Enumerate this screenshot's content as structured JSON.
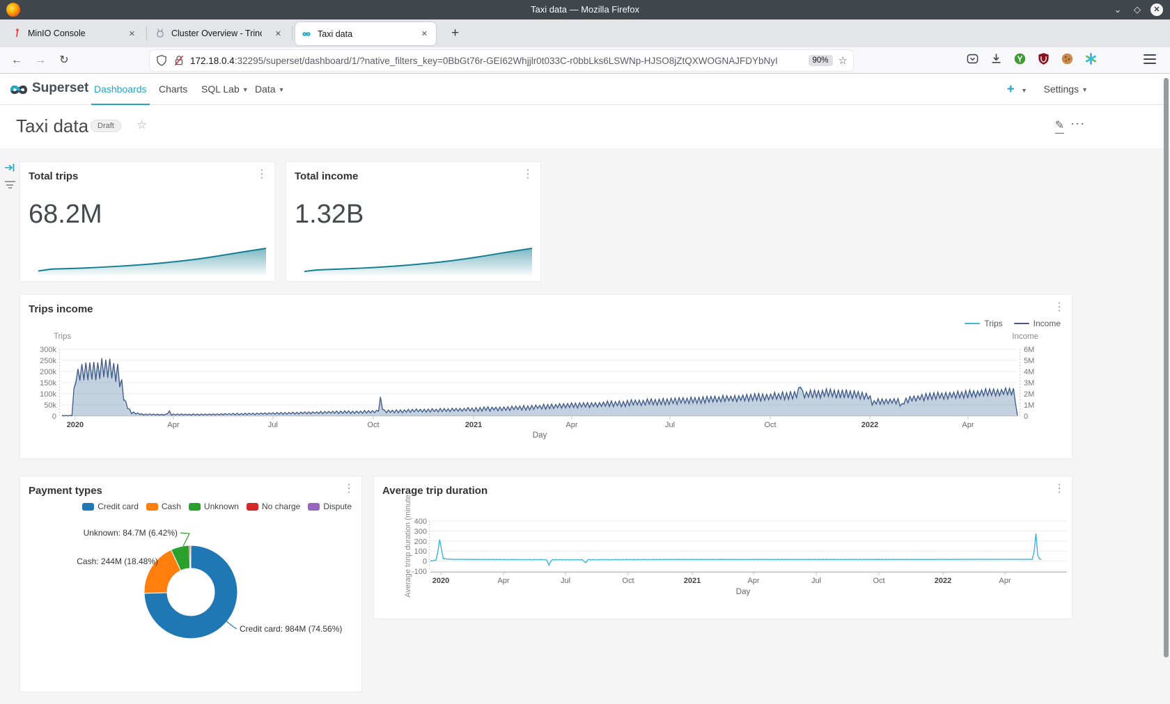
{
  "titlebar": {
    "title": "Taxi data — Mozilla Firefox"
  },
  "tab_strip": {
    "tabs": [
      {
        "label": "MinIO Console"
      },
      {
        "label": "Cluster Overview - Trino"
      },
      {
        "label": "Taxi data",
        "active": true
      }
    ],
    "close_glyph": "✕",
    "new_tab_glyph": "+"
  },
  "toolbar": {
    "url_host": "172.18.0.4",
    "url_rest": ":32295/superset/dashboard/1/?native_filters_key=0BbGt76r-GEI62Whjjlr0t033C-r0bbLks6LSWNp-HJSO8jZtQXWOGNAJFDYbNyI",
    "zoom_badge": "90%"
  },
  "app_nav": {
    "brand": "Superset",
    "items": [
      {
        "label": "Dashboards",
        "active": true
      },
      {
        "label": "Charts"
      },
      {
        "label": "SQL Lab"
      },
      {
        "label": "Data"
      }
    ],
    "settings_label": "Settings"
  },
  "dashboard_header": {
    "title": "Taxi data",
    "badge": "Draft"
  },
  "colors": {
    "accent": "#20a7c9",
    "spark_line": "#137e91",
    "area_fill": "rgba(70,118,160,0.33)"
  },
  "chart_data": [
    {
      "id": "total_trips",
      "type": "big_number_area",
      "title": "Total trips",
      "value": "68.2M",
      "trend": [
        [
          0,
          0.07
        ],
        [
          0.04,
          0.13
        ],
        [
          0.07,
          0.155
        ],
        [
          0.1,
          0.16
        ],
        [
          0.2,
          0.19
        ],
        [
          0.3,
          0.235
        ],
        [
          0.4,
          0.29
        ],
        [
          0.5,
          0.36
        ],
        [
          0.6,
          0.45
        ],
        [
          0.7,
          0.56
        ],
        [
          0.8,
          0.7
        ],
        [
          0.9,
          0.855
        ],
        [
          1,
          1
        ]
      ]
    },
    {
      "id": "total_income",
      "type": "big_number_area",
      "title": "Total income",
      "value": "1.32B",
      "trend": [
        [
          0,
          0.05
        ],
        [
          0.04,
          0.1
        ],
        [
          0.07,
          0.12
        ],
        [
          0.1,
          0.13
        ],
        [
          0.2,
          0.165
        ],
        [
          0.3,
          0.21
        ],
        [
          0.4,
          0.27
        ],
        [
          0.5,
          0.345
        ],
        [
          0.6,
          0.44
        ],
        [
          0.7,
          0.555
        ],
        [
          0.8,
          0.7
        ],
        [
          0.9,
          0.86
        ],
        [
          1,
          1
        ]
      ]
    },
    {
      "id": "trips_income",
      "type": "area_line_dual_axis",
      "title": "Trips income",
      "xlabel": "Day",
      "x_ticks": [
        {
          "f": 0.0138,
          "label": "2020",
          "year": true
        },
        {
          "f": 0.1166,
          "label": "Apr"
        },
        {
          "f": 0.2208,
          "label": "Jul"
        },
        {
          "f": 0.3258,
          "label": "Oct"
        },
        {
          "f": 0.4308,
          "label": "2021",
          "year": true
        },
        {
          "f": 0.5335,
          "label": "Apr"
        },
        {
          "f": 0.6363,
          "label": "Jul"
        },
        {
          "f": 0.7413,
          "label": "Oct"
        },
        {
          "f": 0.8455,
          "label": "2022",
          "year": true
        },
        {
          "f": 0.9482,
          "label": "Apr"
        }
      ],
      "y_left": {
        "label": "Trips",
        "ticks": [
          "0",
          "50k",
          "100k",
          "150k",
          "200k",
          "250k",
          "300k"
        ],
        "max": 300
      },
      "y_right": {
        "label": "Income",
        "ticks": [
          "0",
          "1M",
          "2M",
          "3M",
          "4M",
          "5M",
          "6M"
        ],
        "max": 6
      },
      "series": [
        {
          "name": "Trips",
          "color": "#3fb8d8",
          "unit": "trips_per_day_thousands",
          "keyframes": [
            [
              0.0,
              2,
              1
            ],
            [
              0.011,
              2,
              1
            ],
            [
              0.013,
              160,
              8
            ],
            [
              0.018,
              195,
              42
            ],
            [
              0.032,
              205,
              48
            ],
            [
              0.05,
              215,
              45
            ],
            [
              0.058,
              205,
              45
            ],
            [
              0.062,
              150,
              30
            ],
            [
              0.066,
              60,
              14
            ],
            [
              0.072,
              16,
              5
            ],
            [
              0.085,
              7,
              3
            ],
            [
              0.11,
              6,
              3
            ],
            [
              0.1115,
              28,
              6
            ],
            [
              0.114,
              6,
              3
            ],
            [
              0.15,
              7,
              3
            ],
            [
              0.2,
              10,
              4
            ],
            [
              0.25,
              14,
              5
            ],
            [
              0.3,
              18,
              6
            ],
            [
              0.331,
              20,
              7
            ],
            [
              0.3335,
              88,
              6
            ],
            [
              0.336,
              21,
              7
            ],
            [
              0.38,
              25,
              8
            ],
            [
              0.43,
              30,
              9
            ],
            [
              0.48,
              38,
              11
            ],
            [
              0.533,
              48,
              12
            ],
            [
              0.59,
              58,
              14
            ],
            [
              0.636,
              68,
              15
            ],
            [
              0.69,
              78,
              16
            ],
            [
              0.741,
              88,
              18
            ],
            [
              0.77,
              98,
              18
            ],
            [
              0.7725,
              148,
              8
            ],
            [
              0.775,
              98,
              18
            ],
            [
              0.8,
              104,
              20
            ],
            [
              0.83,
              100,
              20
            ],
            [
              0.8455,
              88,
              16
            ],
            [
              0.847,
              58,
              10
            ],
            [
              0.855,
              68,
              14
            ],
            [
              0.8765,
              68,
              14
            ],
            [
              0.878,
              26,
              5
            ],
            [
              0.8805,
              70,
              14
            ],
            [
              0.9,
              86,
              16
            ],
            [
              0.93,
              96,
              18
            ],
            [
              0.96,
              104,
              18
            ],
            [
              0.985,
              110,
              18
            ],
            [
              0.9965,
              112,
              14
            ],
            [
              0.998,
              60,
              5
            ],
            [
              1.0,
              2,
              0
            ]
          ]
        },
        {
          "name": "Income",
          "color": "#495381",
          "unit": "income_per_day_millions",
          "keyframes": [
            [
              0.0,
              0.04,
              0.02
            ],
            [
              0.011,
              0.04,
              0.02
            ],
            [
              0.013,
              3.1,
              0.2
            ],
            [
              0.018,
              3.8,
              0.9
            ],
            [
              0.032,
              4.0,
              1.05
            ],
            [
              0.05,
              4.2,
              1.0
            ],
            [
              0.058,
              4.0,
              1.0
            ],
            [
              0.062,
              2.9,
              0.65
            ],
            [
              0.066,
              1.2,
              0.3
            ],
            [
              0.072,
              0.3,
              0.1
            ],
            [
              0.085,
              0.14,
              0.06
            ],
            [
              0.11,
              0.12,
              0.06
            ],
            [
              0.1115,
              0.55,
              0.12
            ],
            [
              0.114,
              0.12,
              0.06
            ],
            [
              0.15,
              0.14,
              0.06
            ],
            [
              0.2,
              0.2,
              0.08
            ],
            [
              0.25,
              0.27,
              0.1
            ],
            [
              0.3,
              0.35,
              0.12
            ],
            [
              0.331,
              0.39,
              0.14
            ],
            [
              0.3335,
              1.7,
              0.12
            ],
            [
              0.336,
              0.41,
              0.14
            ],
            [
              0.38,
              0.49,
              0.16
            ],
            [
              0.43,
              0.59,
              0.18
            ],
            [
              0.48,
              0.74,
              0.22
            ],
            [
              0.533,
              0.94,
              0.24
            ],
            [
              0.59,
              1.13,
              0.28
            ],
            [
              0.636,
              1.33,
              0.3
            ],
            [
              0.69,
              1.52,
              0.32
            ],
            [
              0.741,
              1.72,
              0.36
            ],
            [
              0.77,
              1.92,
              0.36
            ],
            [
              0.7725,
              2.9,
              0.16
            ],
            [
              0.775,
              1.92,
              0.36
            ],
            [
              0.8,
              2.03,
              0.4
            ],
            [
              0.83,
              1.96,
              0.4
            ],
            [
              0.8455,
              1.72,
              0.32
            ],
            [
              0.847,
              1.13,
              0.2
            ],
            [
              0.855,
              1.33,
              0.28
            ],
            [
              0.8765,
              1.33,
              0.28
            ],
            [
              0.878,
              0.51,
              0.1
            ],
            [
              0.8805,
              1.37,
              0.28
            ],
            [
              0.9,
              1.68,
              0.32
            ],
            [
              0.93,
              1.88,
              0.36
            ],
            [
              0.96,
              2.03,
              0.36
            ],
            [
              0.985,
              2.15,
              0.36
            ],
            [
              0.9965,
              2.19,
              0.28
            ],
            [
              0.998,
              1.17,
              0.1
            ],
            [
              1.0,
              0.04,
              0
            ]
          ]
        }
      ]
    },
    {
      "id": "payment_types",
      "type": "donut",
      "title": "Payment types",
      "legend": [
        {
          "label": "Credit card",
          "color": "#1f77b4"
        },
        {
          "label": "Cash",
          "color": "#ff7f0e"
        },
        {
          "label": "Unknown",
          "color": "#2ca02c"
        },
        {
          "label": "No charge",
          "color": "#d62728"
        },
        {
          "label": "Dispute",
          "color": "#9467bd"
        }
      ],
      "slices": [
        {
          "label": "Credit card",
          "value": "984M",
          "pct": 74.56
        },
        {
          "label": "Cash",
          "value": "244M",
          "pct": 18.48
        },
        {
          "label": "Unknown",
          "value": "84.7M",
          "pct": 6.42
        },
        {
          "label": "No charge",
          "pct": 0.45
        },
        {
          "label": "Dispute",
          "pct": 0.09
        }
      ],
      "callouts": [
        "Unknown: 84.7M (6.42%)",
        "Cash: 244M (18.48%)",
        "Credit card: 984M (74.56%)"
      ]
    },
    {
      "id": "avg_duration",
      "type": "line",
      "title": "Average trip duration",
      "ylabel": "Average trinp duration (minute",
      "xlabel": "Day",
      "y_ticks": [
        "-100",
        "0",
        "100",
        "200",
        "300",
        "400"
      ],
      "x_ticks": [
        {
          "f": 0.0164,
          "label": "2020",
          "year": true
        },
        {
          "f": 0.1149,
          "label": "Apr"
        },
        {
          "f": 0.2123,
          "label": "Jul"
        },
        {
          "f": 0.3107,
          "label": "Oct"
        },
        {
          "f": 0.4114,
          "label": "2021",
          "year": true
        },
        {
          "f": 0.5077,
          "label": "Apr"
        },
        {
          "f": 0.6062,
          "label": "Jul"
        },
        {
          "f": 0.7046,
          "label": "Oct"
        },
        {
          "f": 0.8053,
          "label": "2022",
          "year": true
        },
        {
          "f": 0.9026,
          "label": "Apr"
        }
      ],
      "series": [
        {
          "name": "duration",
          "color": "#3fb6d8",
          "unit": "minutes",
          "keyframes": [
            [
              0.0,
              2,
              1
            ],
            [
              0.01,
              12,
              3
            ],
            [
              0.0145,
              218,
              2
            ],
            [
              0.02,
              25,
              5
            ],
            [
              0.03,
              18,
              4
            ],
            [
              0.12,
              15,
              4
            ],
            [
              0.183,
              14,
              4
            ],
            [
              0.1865,
              -48,
              4
            ],
            [
              0.19,
              14,
              4
            ],
            [
              0.24,
              14,
              4
            ],
            [
              0.2435,
              -28,
              4
            ],
            [
              0.247,
              14,
              4
            ],
            [
              0.4,
              16,
              4
            ],
            [
              0.6,
              16,
              4
            ],
            [
              0.8,
              17,
              4
            ],
            [
              0.9,
              18,
              4
            ],
            [
              0.9475,
              18,
              4
            ],
            [
              0.951,
              298,
              3
            ],
            [
              0.9545,
              30,
              5
            ],
            [
              0.96,
              16,
              3
            ]
          ]
        }
      ]
    }
  ]
}
